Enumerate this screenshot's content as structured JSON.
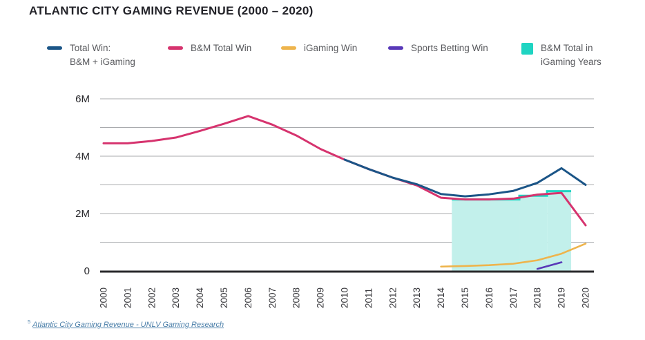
{
  "page": {
    "title": "ATLANTIC CITY GAMING REVENUE (2000 – 2020)"
  },
  "legend": {
    "items": [
      {
        "label_line1": "Total Win:",
        "label_line2": "B&M + iGaming",
        "color": "#1b5587",
        "marker": "dash"
      },
      {
        "label_line1": "B&M Total Win",
        "label_line2": "",
        "color": "#d6336e",
        "marker": "dash"
      },
      {
        "label_line1": "iGaming Win",
        "label_line2": "",
        "color": "#eeb44c",
        "marker": "dash"
      },
      {
        "label_line1": "Sports Betting Win",
        "label_line2": "",
        "color": "#5838b8",
        "marker": "dash"
      },
      {
        "label_line1": "B&M Total in",
        "label_line2": "iGaming Years",
        "color": "#1fd4c2",
        "marker": "square"
      }
    ]
  },
  "chart_data": {
    "type": "line",
    "title": "ATLANTIC CITY GAMING REVENUE (2000 – 2020)",
    "xlabel": "",
    "ylabel": "",
    "unit": "M",
    "ylim": [
      0,
      6
    ],
    "grid": true,
    "legend_position": "top",
    "x": [
      2000,
      2001,
      2002,
      2003,
      2004,
      2005,
      2006,
      2007,
      2008,
      2009,
      2010,
      2011,
      2012,
      2013,
      2014,
      2015,
      2016,
      2017,
      2018,
      2019,
      2020
    ],
    "y_ticks": [
      {
        "value": 0,
        "label": "0"
      },
      {
        "value": 2,
        "label": "2M"
      },
      {
        "value": 4,
        "label": "4M"
      },
      {
        "value": 6,
        "label": "6M"
      }
    ],
    "grid_values": [
      1,
      2,
      3,
      4,
      5,
      6
    ],
    "series": [
      {
        "name": "Total Win: B&M + iGaming",
        "color": "#1b5587",
        "x": [
          2000,
          2001,
          2002,
          2003,
          2004,
          2005,
          2006,
          2007,
          2008,
          2009,
          2010,
          2011,
          2012,
          2013,
          2014,
          2015,
          2016,
          2017,
          2018,
          2019,
          2020
        ],
        "values": [
          4.45,
          4.45,
          4.53,
          4.65,
          4.88,
          5.13,
          5.4,
          5.1,
          4.72,
          4.25,
          3.88,
          3.55,
          3.25,
          3.02,
          2.68,
          2.6,
          2.67,
          2.79,
          3.07,
          3.58,
          3.0
        ]
      },
      {
        "name": "B&M Total Win",
        "color": "#d6336e",
        "x": [
          2000,
          2001,
          2002,
          2003,
          2004,
          2005,
          2006,
          2007,
          2008,
          2009,
          2010,
          2011,
          2012,
          2013,
          2014,
          2015,
          2016,
          2017,
          2018,
          2019,
          2020
        ],
        "values": [
          4.45,
          4.45,
          4.53,
          4.65,
          4.88,
          5.13,
          5.4,
          5.1,
          4.72,
          4.25,
          3.88,
          3.55,
          3.25,
          2.98,
          2.55,
          2.49,
          2.49,
          2.52,
          2.66,
          2.72,
          1.59
        ]
      },
      {
        "name": "iGaming Win",
        "color": "#eeb44c",
        "x": [
          2014,
          2015,
          2016,
          2017,
          2018,
          2019,
          2020
        ],
        "values": [
          0.15,
          0.17,
          0.2,
          0.25,
          0.37,
          0.6,
          0.95
        ]
      },
      {
        "name": "Sports Betting Win",
        "color": "#5838b8",
        "x": [
          2018,
          2019
        ],
        "values": [
          0.07,
          0.3
        ]
      }
    ],
    "area": {
      "name": "B&M Total in iGaming Years",
      "fill": "#c2f0eb",
      "edge": "#1fd4c2",
      "segments": [
        {
          "x_start": 2014.45,
          "x_end": 2017.25,
          "top": 2.49
        },
        {
          "x_start": 2017.25,
          "x_end": 2018.4,
          "top": 2.62
        },
        {
          "x_start": 2018.4,
          "x_end": 2019.4,
          "top": 2.78
        }
      ]
    }
  },
  "footer": {
    "ref_mark": "5",
    "source_text": "Atlantic City Gaming Revenue - UNLV Gaming Research"
  }
}
